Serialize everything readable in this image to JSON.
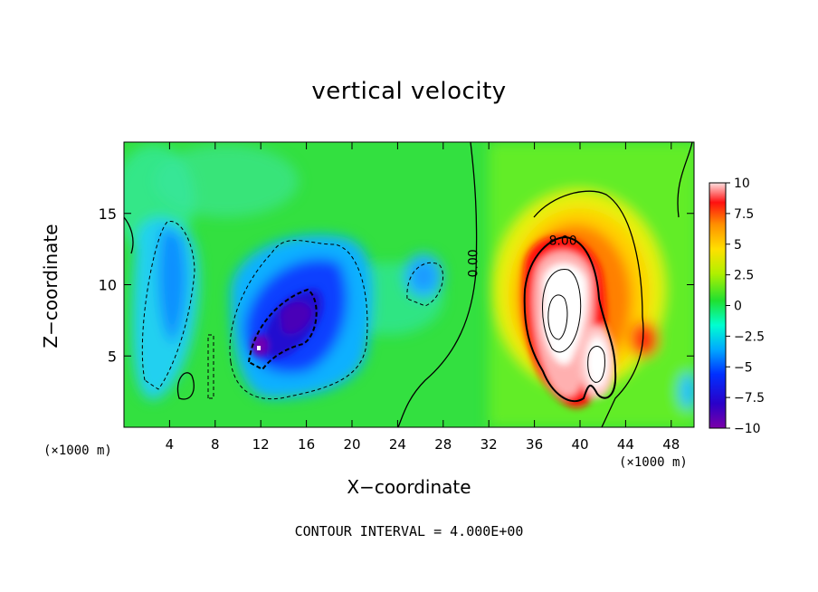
{
  "chart_data": {
    "type": "heatmap",
    "title": "vertical velocity",
    "xlabel": "X−coordinate",
    "ylabel": "Z−coordinate",
    "x_unit_label": "(×1000 m)",
    "x_unit_label_right": "(×1000 m)",
    "xlim": [
      0,
      50
    ],
    "ylim": [
      0,
      20
    ],
    "x_ticks": [
      4,
      8,
      12,
      16,
      20,
      24,
      28,
      32,
      36,
      40,
      44,
      48
    ],
    "x_tick_labels": [
      "4",
      "8",
      "12",
      "16",
      "20",
      "24",
      "28",
      "32",
      "36",
      "40",
      "44",
      "48"
    ],
    "y_ticks": [
      5,
      10,
      15
    ],
    "y_tick_labels": [
      "5",
      "10",
      "15"
    ],
    "colorbar": {
      "range": [
        -10,
        10
      ],
      "ticks": [
        10,
        7.5,
        5,
        2.5,
        0,
        -2.5,
        -5,
        -7.5,
        -10
      ],
      "tick_labels": [
        "10",
        "7.5",
        "5",
        "2.5",
        "0",
        "−2.5",
        "−5",
        "−7.5",
        "−10"
      ],
      "colors": [
        "#7a00a8",
        "#2a00c8",
        "#0030ff",
        "#00b0ff",
        "#00ffd0",
        "#20e030",
        "#b0f000",
        "#ffe000",
        "#ff9000",
        "#ff1010",
        "#ffe0e0"
      ]
    },
    "contour_labels": [
      {
        "text": "0.00",
        "x": 31,
        "y": 11.5,
        "rotate": -90
      },
      {
        "text": "8.00",
        "x": 38.5,
        "y": 12.8
      }
    ],
    "contour_interval": "CONTOUR INTERVAL = 4.000E+00",
    "features": [
      {
        "name": "updraft-core",
        "center": [
          38.2,
          8.0
        ],
        "peak": 10
      },
      {
        "name": "updraft-secondary",
        "center": [
          41.0,
          5.0
        ],
        "peak": 10
      },
      {
        "name": "updraft-side",
        "center": [
          45.5,
          6.5
        ],
        "peak": 7
      },
      {
        "name": "downdraft-core",
        "center": [
          14.0,
          7.5
        ],
        "peak": -9
      },
      {
        "name": "downdraft-left",
        "center": [
          5.0,
          10.0
        ],
        "peak": -5
      },
      {
        "name": "downdraft-small",
        "center": [
          26.5,
          10.5
        ],
        "peak": -4
      }
    ]
  }
}
